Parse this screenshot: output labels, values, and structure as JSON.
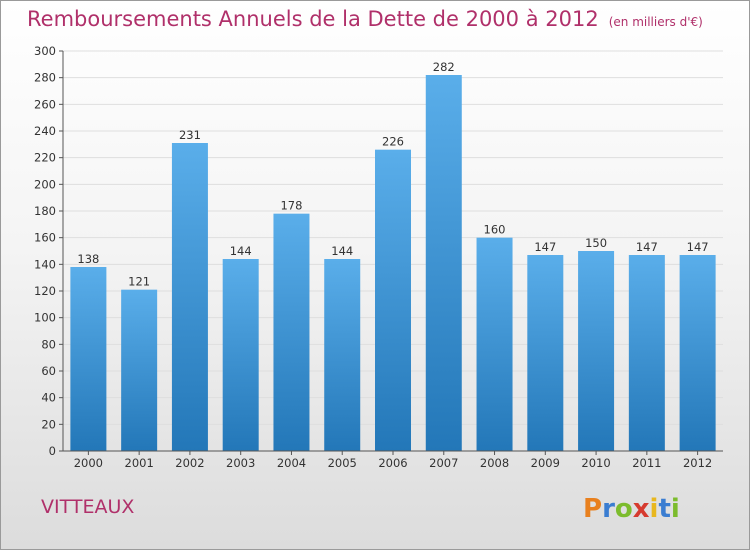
{
  "title": "Remboursements Annuels de la Dette de 2000 à 2012",
  "unit": "(en milliers d'€)",
  "commune": "VITTEAUX",
  "logo_text": "Proxiti",
  "colors": {
    "title": "#b0306a",
    "bar_top": "#5aaeea",
    "bar_bottom": "#2377b8"
  },
  "chart_data": {
    "type": "bar",
    "title": "Remboursements Annuels de la Dette de 2000 à 2012",
    "categories": [
      "2000",
      "2001",
      "2002",
      "2003",
      "2004",
      "2005",
      "2006",
      "2007",
      "2008",
      "2009",
      "2010",
      "2011",
      "2012"
    ],
    "values": [
      138,
      121,
      231,
      144,
      178,
      144,
      226,
      282,
      160,
      147,
      150,
      147,
      147
    ],
    "ylim": [
      0,
      300
    ],
    "yticks": [
      0,
      20,
      40,
      60,
      80,
      100,
      120,
      140,
      160,
      180,
      200,
      220,
      240,
      260,
      280,
      300
    ],
    "grid": true,
    "xlabel": "",
    "ylabel": ""
  }
}
